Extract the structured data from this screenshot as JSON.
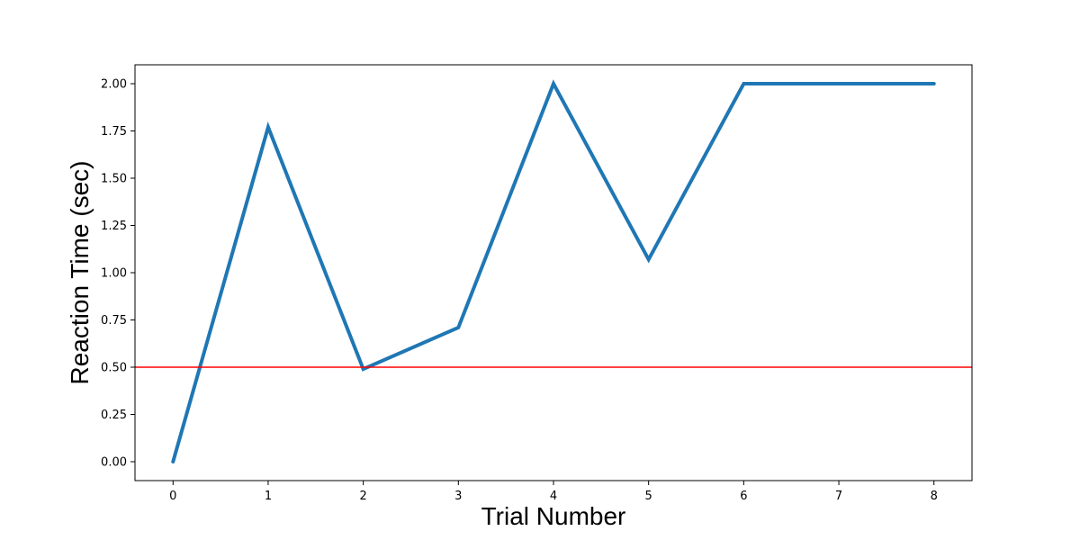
{
  "chart_data": {
    "type": "line",
    "title": "",
    "xlabel": "Trial Number",
    "ylabel": "Reaction Time (sec)",
    "x": [
      0,
      1,
      2,
      3,
      4,
      5,
      6,
      7,
      8
    ],
    "series": [
      {
        "values": [
          0.0,
          1.77,
          0.49,
          0.71,
          2.0,
          1.07,
          2.0,
          2.0,
          2.0
        ],
        "color": "#1f77b4"
      }
    ],
    "reference_line": {
      "axis": "y",
      "value": 0.5,
      "color": "#ff0000"
    },
    "xlim": [
      -0.4,
      8.4
    ],
    "ylim": [
      -0.1,
      2.1
    ],
    "xticks": [
      0,
      1,
      2,
      3,
      4,
      5,
      6,
      7,
      8
    ],
    "xtick_labels": [
      "0",
      "1",
      "2",
      "3",
      "4",
      "5",
      "6",
      "7",
      "8"
    ],
    "yticks": [
      0.0,
      0.25,
      0.5,
      0.75,
      1.0,
      1.25,
      1.5,
      1.75,
      2.0
    ],
    "ytick_labels": [
      "0.00",
      "0.25",
      "0.50",
      "0.75",
      "1.00",
      "1.25",
      "1.50",
      "1.75",
      "2.00"
    ],
    "grid": false,
    "legend": "none"
  }
}
